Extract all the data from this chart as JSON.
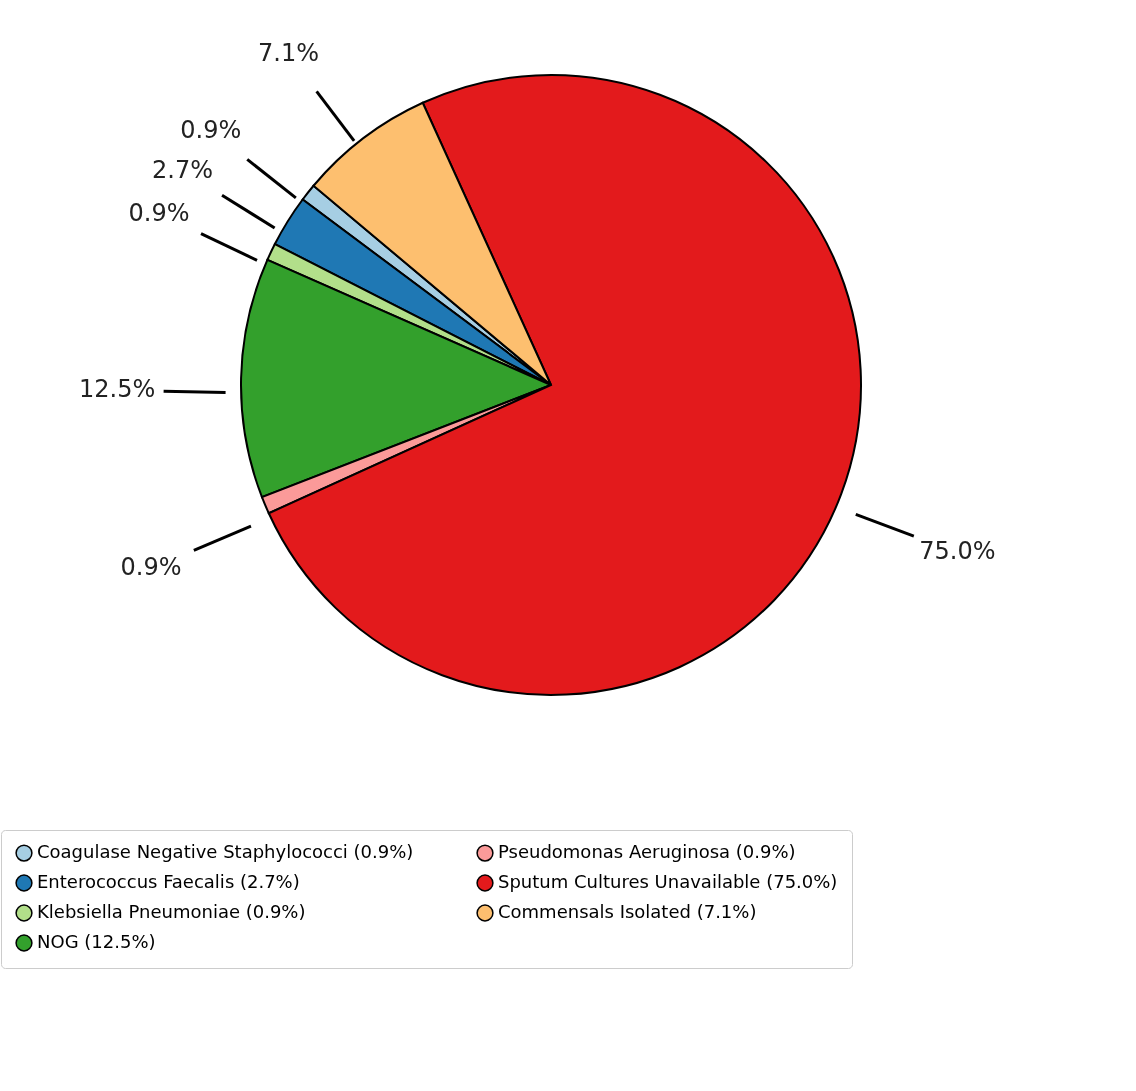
{
  "chart_data": {
    "type": "pie",
    "categories": [
      "Coagulase Negative Staphylococci (0.9%)",
      "Enterococcus Faecalis (2.7%)",
      "Klebsiella Pneumoniae (0.9%)",
      "NOG (12.5%)",
      "Pseudomonas Aeruginosa (0.9%)",
      "Sputum Cultures Unavailable (75.0%)",
      "Commensals Isolated (7.1%)"
    ],
    "values": [
      0.9,
      2.7,
      0.9,
      12.5,
      0.9,
      75.0,
      7.1
    ],
    "value_labels": [
      "0.9%",
      "2.7%",
      "0.9%",
      "12.5%",
      "0.9%",
      "75.0%",
      "7.1%"
    ],
    "colors": [
      "#a6cee3",
      "#1f78b4",
      "#b2df8a",
      "#33a02c",
      "#fb9a99",
      "#e31a1c",
      "#fdbf6f"
    ],
    "legend": "bottom"
  }
}
